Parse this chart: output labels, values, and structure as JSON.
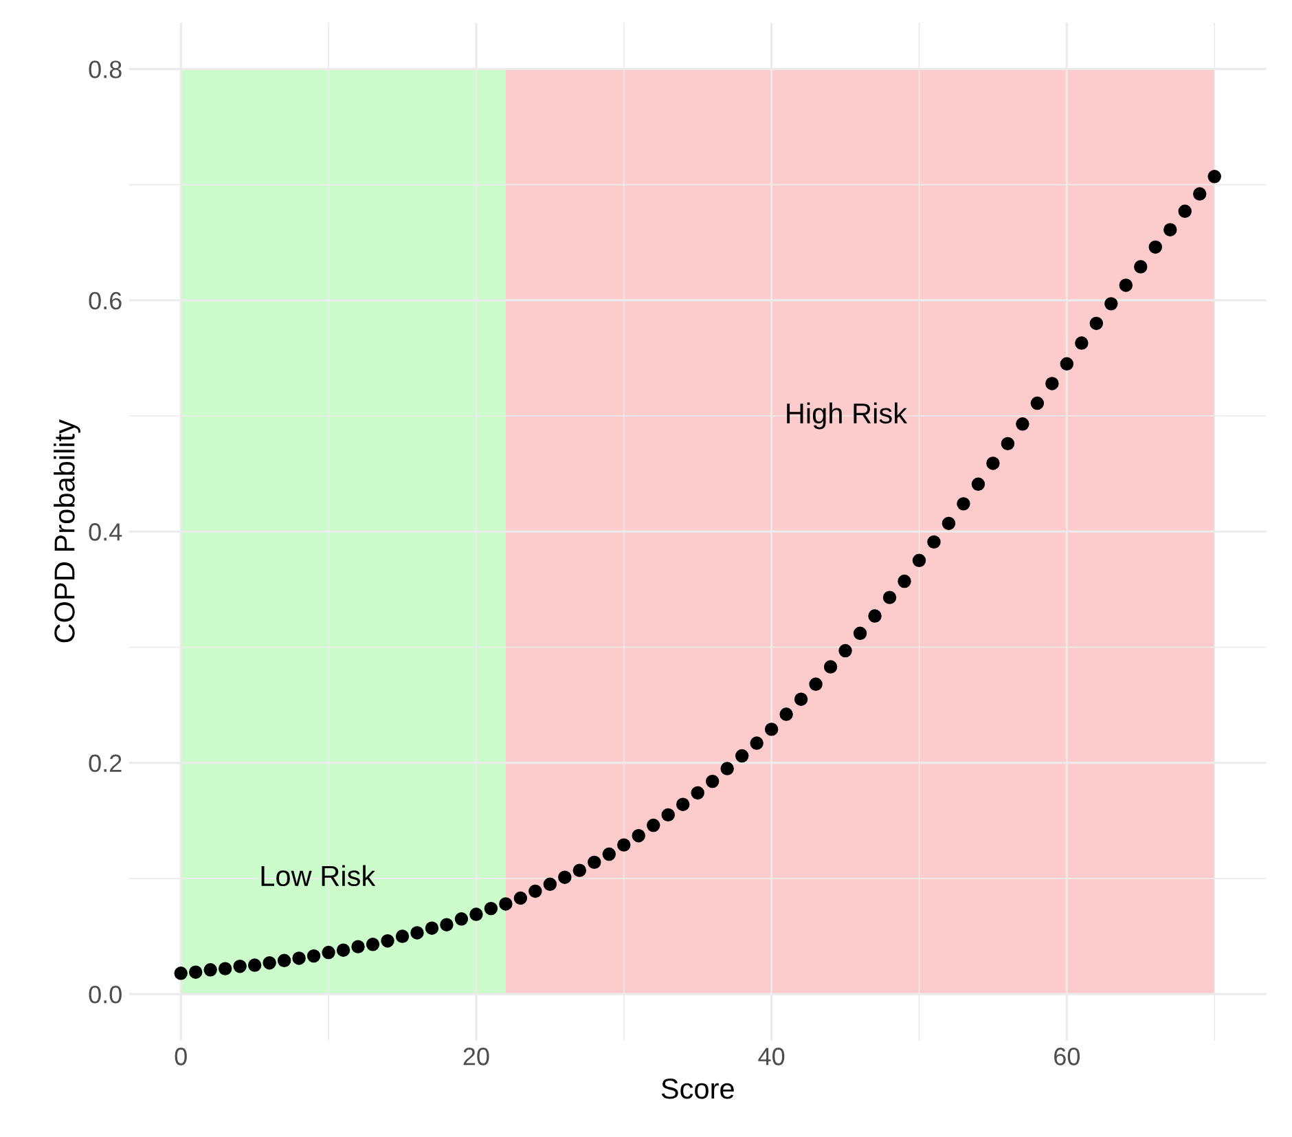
{
  "chart_data": {
    "type": "scatter",
    "xlabel": "Score",
    "ylabel": "COPD Probability",
    "x": [
      0,
      1,
      2,
      3,
      4,
      5,
      6,
      7,
      8,
      9,
      10,
      11,
      12,
      13,
      14,
      15,
      16,
      17,
      18,
      19,
      20,
      21,
      22,
      23,
      24,
      25,
      26,
      27,
      28,
      29,
      30,
      31,
      32,
      33,
      34,
      35,
      36,
      37,
      38,
      39,
      40,
      41,
      42,
      43,
      44,
      45,
      46,
      47,
      48,
      49,
      50,
      51,
      52,
      53,
      54,
      55,
      56,
      57,
      58,
      59,
      60,
      61,
      62,
      63,
      64,
      65,
      66,
      67,
      68,
      69,
      70
    ],
    "series": [
      {
        "color": "#000000",
        "values": [
          0.018,
          0.019,
          0.021,
          0.022,
          0.024,
          0.025,
          0.027,
          0.029,
          0.031,
          0.033,
          0.036,
          0.038,
          0.041,
          0.043,
          0.046,
          0.05,
          0.053,
          0.057,
          0.06,
          0.065,
          0.069,
          0.074,
          0.078,
          0.083,
          0.089,
          0.095,
          0.101,
          0.107,
          0.114,
          0.121,
          0.129,
          0.137,
          0.146,
          0.155,
          0.164,
          0.174,
          0.184,
          0.195,
          0.206,
          0.217,
          0.229,
          0.242,
          0.255,
          0.268,
          0.283,
          0.297,
          0.312,
          0.327,
          0.343,
          0.357,
          0.375,
          0.391,
          0.407,
          0.424,
          0.441,
          0.459,
          0.476,
          0.493,
          0.511,
          0.528,
          0.545,
          0.563,
          0.58,
          0.597,
          0.613,
          0.629,
          0.646,
          0.661,
          0.677,
          0.692,
          0.707
        ]
      }
    ],
    "marker": "circle",
    "xlim": [
      -3.5,
      73.5
    ],
    "ylim": [
      -0.04,
      0.84
    ],
    "xticks": [
      0,
      {
        "value": 10,
        "label": null
      },
      20,
      {
        "value": 30,
        "label": null
      },
      40,
      {
        "value": 50,
        "label": null
      },
      60,
      {
        "value": 70,
        "label": null
      }
    ],
    "yticks": [
      {
        "value": 0,
        "label": "0.0"
      },
      {
        "value": 0.1,
        "label": null
      },
      0.2,
      {
        "value": 0.3,
        "label": null
      },
      0.4,
      {
        "value": 0.5,
        "label": null
      },
      0.6,
      {
        "value": 0.7,
        "label": null
      },
      0.8
    ],
    "grid": true,
    "bands": [
      {
        "axis": "x",
        "from": 0,
        "to": 22,
        "color": "#ccfccc",
        "label": "Low Risk"
      },
      {
        "axis": "x",
        "from": 22,
        "to": 70,
        "color": "#fccccc",
        "label": "High Risk"
      }
    ]
  }
}
